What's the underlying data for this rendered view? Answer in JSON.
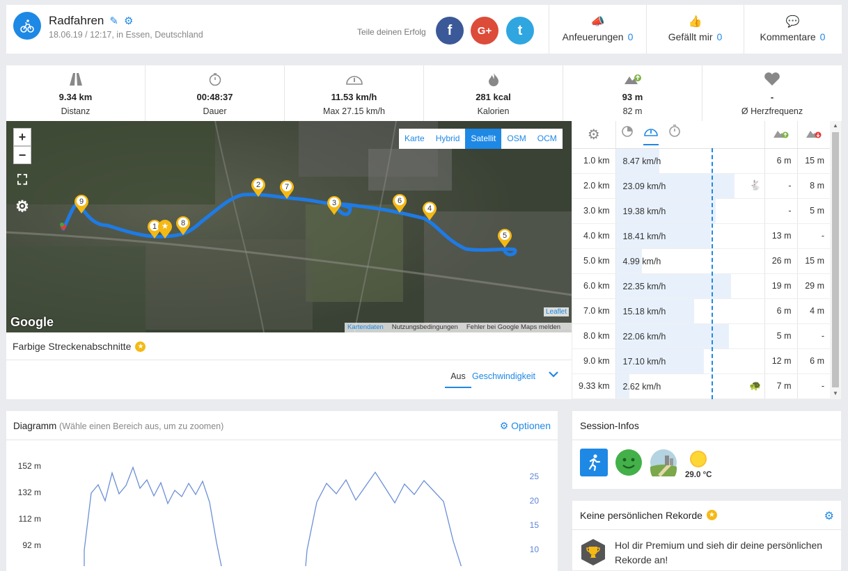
{
  "header": {
    "title": "Radfahren",
    "subtitle": "18.06.19 / 12:17, in Essen, Deutschland",
    "share_label": "Teile deinen Erfolg",
    "social": [
      {
        "name": "facebook",
        "glyph": "f",
        "color": "#3b5998"
      },
      {
        "name": "google-plus",
        "glyph": "G+",
        "color": "#dd4b39"
      },
      {
        "name": "twitter",
        "glyph": "t",
        "color": "#2fa6e0"
      }
    ],
    "actions": [
      {
        "label": "Anfeuerungen",
        "count": "0"
      },
      {
        "label": "Gefällt mir",
        "count": "0"
      },
      {
        "label": "Kommentare",
        "count": "0"
      }
    ]
  },
  "stats": [
    {
      "value": "9.34 km",
      "label": "Distanz"
    },
    {
      "value": "00:48:37",
      "label": "Dauer"
    },
    {
      "value": "11.53 km/h",
      "label": "Max 27.15 km/h"
    },
    {
      "value": "281 kcal",
      "label": "Kalorien"
    },
    {
      "value": "93 m",
      "label": "82 m"
    },
    {
      "value": "-",
      "label": "Ø Herzfrequenz"
    }
  ],
  "map": {
    "zoom_in": "+",
    "zoom_out": "−",
    "layers": [
      "Karte",
      "Hybrid",
      "Satellit",
      "OSM",
      "OCM"
    ],
    "active_layer": "Satellit",
    "google": "Google",
    "leaflet": "Leaflet",
    "attribution": [
      "Kartendaten",
      "Nutzungsbedingungen",
      "Fehler bei Google Maps melden"
    ],
    "markers": [
      "1",
      "2",
      "3",
      "4",
      "5",
      "6",
      "7",
      "8",
      "9"
    ]
  },
  "segments": {
    "title": "Farbige Streckenabschnitte",
    "tab_off": "Aus",
    "tab_speed": "Geschwindigkeit"
  },
  "splits": {
    "rows": [
      {
        "km": "1.0 km",
        "speed": "8.47 km/h",
        "speed_value": 8.47,
        "up": "6 m",
        "down": "15 m",
        "icon": ""
      },
      {
        "km": "2.0 km",
        "speed": "23.09 km/h",
        "speed_value": 23.09,
        "up": "-",
        "down": "8 m",
        "icon": "rabbit"
      },
      {
        "km": "3.0 km",
        "speed": "19.38 km/h",
        "speed_value": 19.38,
        "up": "-",
        "down": "5 m",
        "icon": ""
      },
      {
        "km": "4.0 km",
        "speed": "18.41 km/h",
        "speed_value": 18.41,
        "up": "13 m",
        "down": "-",
        "icon": ""
      },
      {
        "km": "5.0 km",
        "speed": "4.99 km/h",
        "speed_value": 4.99,
        "up": "26 m",
        "down": "15 m",
        "icon": ""
      },
      {
        "km": "6.0 km",
        "speed": "22.35 km/h",
        "speed_value": 22.35,
        "up": "19 m",
        "down": "29 m",
        "icon": ""
      },
      {
        "km": "7.0 km",
        "speed": "15.18 km/h",
        "speed_value": 15.18,
        "up": "6 m",
        "down": "4 m",
        "icon": ""
      },
      {
        "km": "8.0 km",
        "speed": "22.06 km/h",
        "speed_value": 22.06,
        "up": "5 m",
        "down": "-",
        "icon": ""
      },
      {
        "km": "9.0 km",
        "speed": "17.10 km/h",
        "speed_value": 17.1,
        "up": "12 m",
        "down": "6 m",
        "icon": ""
      },
      {
        "km": "9.33 km",
        "speed": "2.62 km/h",
        "speed_value": 2.62,
        "up": "7 m",
        "down": "-",
        "icon": "turtle"
      }
    ]
  },
  "diagram": {
    "title": "Diagramm",
    "hint": "(Wähle einen Bereich aus, um zu zoomen)",
    "options": "Optionen"
  },
  "chart_data": {
    "type": "line",
    "left_axis_ticks": [
      "152 m",
      "132 m",
      "112 m",
      "92 m"
    ],
    "right_axis_ticks": [
      "25",
      "20",
      "15",
      "10"
    ],
    "series": [
      {
        "values": [
          8,
          10,
          22,
          24,
          21,
          24,
          26,
          22,
          23,
          20,
          23,
          21,
          8,
          20,
          24,
          25,
          22,
          25,
          21,
          24,
          20,
          10
        ]
      }
    ]
  },
  "session": {
    "title": "Session-Infos",
    "temperature": "29.0 °C"
  },
  "records": {
    "title": "Keine persönlichen Rekorde",
    "text": "Hol dir Premium und sieh dir deine persönlichen Rekorde an!"
  }
}
